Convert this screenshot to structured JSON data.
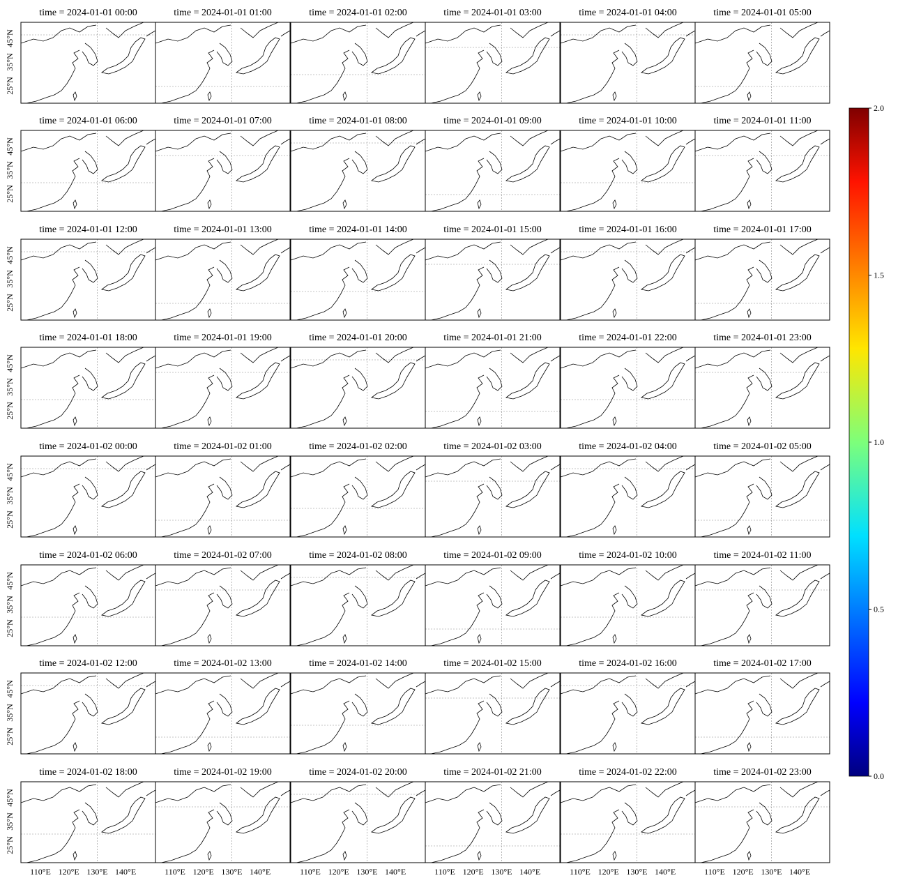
{
  "panels": [
    {
      "title": "time = 2024-01-01 00:00"
    },
    {
      "title": "time = 2024-01-01 01:00"
    },
    {
      "title": "time = 2024-01-01 02:00"
    },
    {
      "title": "time = 2024-01-01 03:00"
    },
    {
      "title": "time = 2024-01-01 04:00"
    },
    {
      "title": "time = 2024-01-01 05:00"
    },
    {
      "title": "time = 2024-01-01 06:00"
    },
    {
      "title": "time = 2024-01-01 07:00"
    },
    {
      "title": "time = 2024-01-01 08:00"
    },
    {
      "title": "time = 2024-01-01 09:00"
    },
    {
      "title": "time = 2024-01-01 10:00"
    },
    {
      "title": "time = 2024-01-01 11:00"
    },
    {
      "title": "time = 2024-01-01 12:00"
    },
    {
      "title": "time = 2024-01-01 13:00"
    },
    {
      "title": "time = 2024-01-01 14:00"
    },
    {
      "title": "time = 2024-01-01 15:00"
    },
    {
      "title": "time = 2024-01-01 16:00"
    },
    {
      "title": "time = 2024-01-01 17:00"
    },
    {
      "title": "time = 2024-01-01 18:00"
    },
    {
      "title": "time = 2024-01-01 19:00"
    },
    {
      "title": "time = 2024-01-01 20:00"
    },
    {
      "title": "time = 2024-01-01 21:00"
    },
    {
      "title": "time = 2024-01-01 22:00"
    },
    {
      "title": "time = 2024-01-01 23:00"
    },
    {
      "title": "time = 2024-01-02 00:00"
    },
    {
      "title": "time = 2024-01-02 01:00"
    },
    {
      "title": "time = 2024-01-02 02:00"
    },
    {
      "title": "time = 2024-01-02 03:00"
    },
    {
      "title": "time = 2024-01-02 04:00"
    },
    {
      "title": "time = 2024-01-02 05:00"
    },
    {
      "title": "time = 2024-01-02 06:00"
    },
    {
      "title": "time = 2024-01-02 07:00"
    },
    {
      "title": "time = 2024-01-02 08:00"
    },
    {
      "title": "time = 2024-01-02 09:00"
    },
    {
      "title": "time = 2024-01-02 10:00"
    },
    {
      "title": "time = 2024-01-02 11:00"
    },
    {
      "title": "time = 2024-01-02 12:00"
    },
    {
      "title": "time = 2024-01-02 13:00"
    },
    {
      "title": "time = 2024-01-02 14:00"
    },
    {
      "title": "time = 2024-01-02 15:00"
    },
    {
      "title": "time = 2024-01-02 16:00"
    },
    {
      "title": "time = 2024-01-02 17:00"
    },
    {
      "title": "time = 2024-01-02 18:00"
    },
    {
      "title": "time = 2024-01-02 19:00"
    },
    {
      "title": "time = 2024-01-02 20:00"
    },
    {
      "title": "time = 2024-01-02 21:00"
    },
    {
      "title": "time = 2024-01-02 22:00"
    },
    {
      "title": "time = 2024-01-02 23:00"
    }
  ],
  "lat_labels": [
    "45°N",
    "35°N",
    "25°N"
  ],
  "lon_labels": [
    "110°E",
    "120°E",
    "130°E",
    "140°E"
  ],
  "colorbar": {
    "lim": [
      0,
      2
    ],
    "ticks": [
      {
        "value": 0,
        "label": "0.0"
      },
      {
        "value": 0.5,
        "label": "0.5"
      },
      {
        "value": 1,
        "label": "1.0"
      },
      {
        "value": 1.5,
        "label": "1.5"
      },
      {
        "value": 2,
        "label": "2.0"
      }
    ]
  }
}
